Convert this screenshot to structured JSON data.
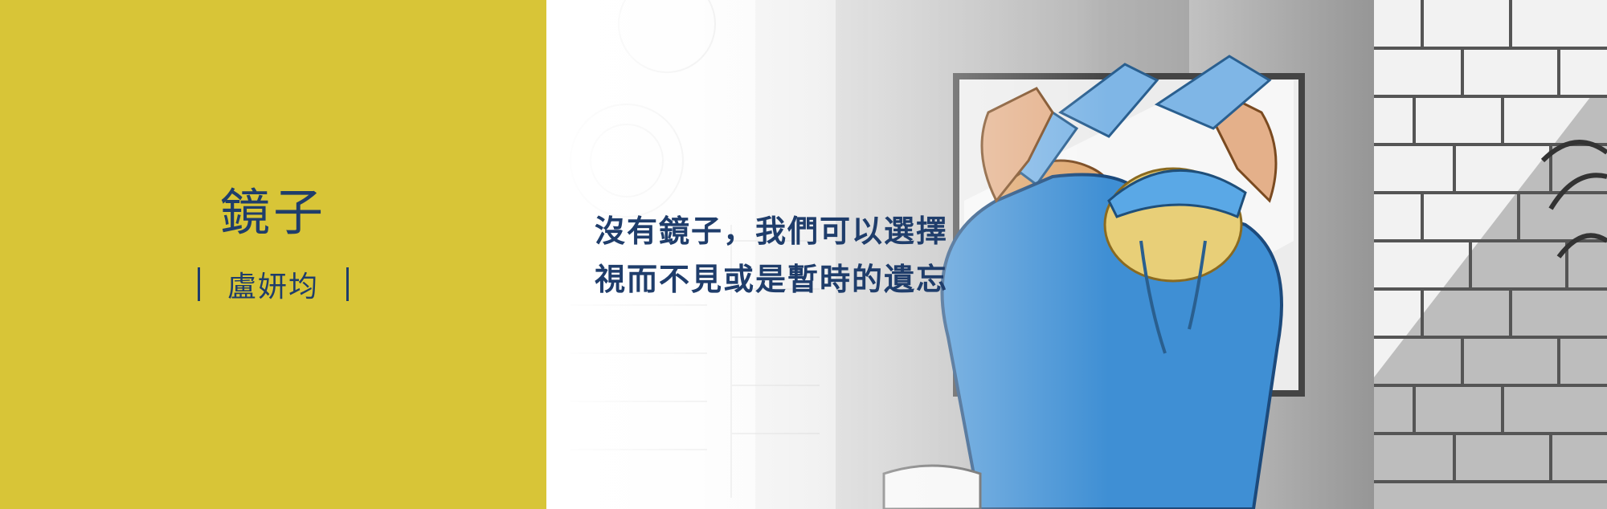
{
  "story": {
    "title": "鏡子",
    "author": "盧妍均"
  },
  "quote": {
    "line1": "沒有鏡子，我們可以選擇",
    "line2": "視而不見或是暫時的遺忘"
  },
  "colors": {
    "accent_yellow": "#d8c537",
    "text_navy": "#1f3d6b",
    "scrubs_blue": "#3f8fd4",
    "glove_blue": "#7fb6e6"
  }
}
